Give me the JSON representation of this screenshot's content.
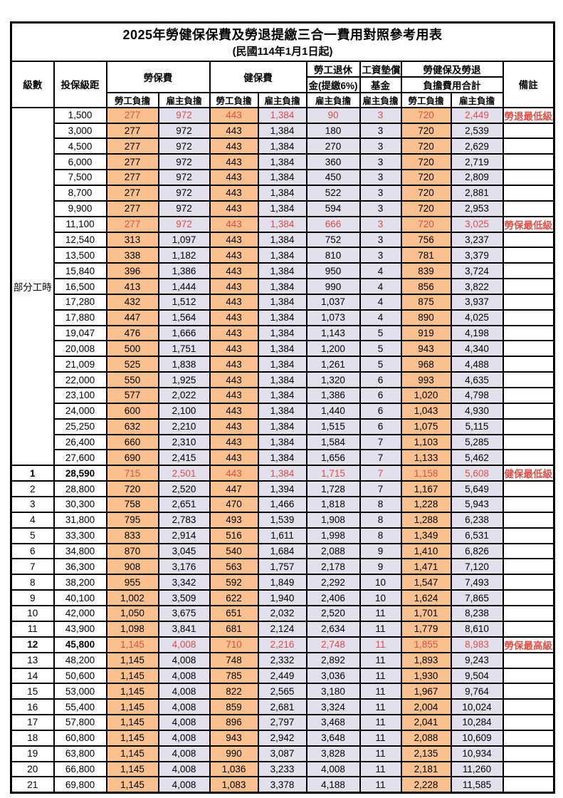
{
  "title": {
    "line1": "2025年勞健保保費及勞退提繳三合一費用對照參考用表",
    "line2": "(民國114年1月1日起)"
  },
  "header": {
    "level": "級數",
    "bracket": "投保級距",
    "labor_insurance": "勞保費",
    "health_insurance": "健保費",
    "pension_line1": "勞工退休",
    "pension_line2": "金(提繳6%)",
    "wage_fund_line1": "工資墊償",
    "wage_fund_line2": "基金",
    "total_line1": "勞健保及勞退",
    "total_line2": "負擔費用合計",
    "remark": "備註",
    "employee": "勞工負擔",
    "employer": "雇主負擔"
  },
  "part_time_label": "部分工時",
  "colors": {
    "employee_bg": "#FAC090",
    "employer_bg": "#E4DFEC",
    "highlight_text": "#E04E48",
    "border": "#000000"
  },
  "rows": [
    {
      "level": "",
      "bracket": "1,500",
      "values": [
        "277",
        "972",
        "443",
        "1,384",
        "90",
        "3",
        "720",
        "2,449"
      ],
      "remark": "勞退最低級距",
      "highlight": true,
      "bold": false
    },
    {
      "level": "",
      "bracket": "3,000",
      "values": [
        "277",
        "972",
        "443",
        "1,384",
        "180",
        "3",
        "720",
        "2,539"
      ],
      "remark": "",
      "highlight": false,
      "bold": false
    },
    {
      "level": "",
      "bracket": "4,500",
      "values": [
        "277",
        "972",
        "443",
        "1,384",
        "270",
        "3",
        "720",
        "2,629"
      ],
      "remark": "",
      "highlight": false,
      "bold": false
    },
    {
      "level": "",
      "bracket": "6,000",
      "values": [
        "277",
        "972",
        "443",
        "1,384",
        "360",
        "3",
        "720",
        "2,719"
      ],
      "remark": "",
      "highlight": false,
      "bold": false
    },
    {
      "level": "",
      "bracket": "7,500",
      "values": [
        "277",
        "972",
        "443",
        "1,384",
        "450",
        "3",
        "720",
        "2,809"
      ],
      "remark": "",
      "highlight": false,
      "bold": false
    },
    {
      "level": "",
      "bracket": "8,700",
      "values": [
        "277",
        "972",
        "443",
        "1,384",
        "522",
        "3",
        "720",
        "2,881"
      ],
      "remark": "",
      "highlight": false,
      "bold": false
    },
    {
      "level": "",
      "bracket": "9,900",
      "values": [
        "277",
        "972",
        "443",
        "1,384",
        "594",
        "3",
        "720",
        "2,953"
      ],
      "remark": "",
      "highlight": false,
      "bold": false
    },
    {
      "level": "",
      "bracket": "11,100",
      "values": [
        "277",
        "972",
        "443",
        "1,384",
        "666",
        "3",
        "720",
        "3,025"
      ],
      "remark": "勞保最低級距",
      "highlight": true,
      "bold": false
    },
    {
      "level": "",
      "bracket": "12,540",
      "values": [
        "313",
        "1,097",
        "443",
        "1,384",
        "752",
        "3",
        "756",
        "3,237"
      ],
      "remark": "",
      "highlight": false,
      "bold": false
    },
    {
      "level": "",
      "bracket": "13,500",
      "values": [
        "338",
        "1,182",
        "443",
        "1,384",
        "810",
        "3",
        "781",
        "3,379"
      ],
      "remark": "",
      "highlight": false,
      "bold": false
    },
    {
      "level": "",
      "bracket": "15,840",
      "values": [
        "396",
        "1,386",
        "443",
        "1,384",
        "950",
        "4",
        "839",
        "3,724"
      ],
      "remark": "",
      "highlight": false,
      "bold": false
    },
    {
      "level": "",
      "bracket": "16,500",
      "values": [
        "413",
        "1,444",
        "443",
        "1,384",
        "990",
        "4",
        "856",
        "3,822"
      ],
      "remark": "",
      "highlight": false,
      "bold": false
    },
    {
      "level": "",
      "bracket": "17,280",
      "values": [
        "432",
        "1,512",
        "443",
        "1,384",
        "1,037",
        "4",
        "875",
        "3,937"
      ],
      "remark": "",
      "highlight": false,
      "bold": false
    },
    {
      "level": "",
      "bracket": "17,880",
      "values": [
        "447",
        "1,564",
        "443",
        "1,384",
        "1,073",
        "4",
        "890",
        "4,025"
      ],
      "remark": "",
      "highlight": false,
      "bold": false
    },
    {
      "level": "",
      "bracket": "19,047",
      "values": [
        "476",
        "1,666",
        "443",
        "1,384",
        "1,143",
        "5",
        "919",
        "4,198"
      ],
      "remark": "",
      "highlight": false,
      "bold": false
    },
    {
      "level": "",
      "bracket": "20,008",
      "values": [
        "500",
        "1,751",
        "443",
        "1,384",
        "1,200",
        "5",
        "943",
        "4,340"
      ],
      "remark": "",
      "highlight": false,
      "bold": false
    },
    {
      "level": "",
      "bracket": "21,009",
      "values": [
        "525",
        "1,838",
        "443",
        "1,384",
        "1,261",
        "5",
        "968",
        "4,488"
      ],
      "remark": "",
      "highlight": false,
      "bold": false
    },
    {
      "level": "",
      "bracket": "22,000",
      "values": [
        "550",
        "1,925",
        "443",
        "1,384",
        "1,320",
        "6",
        "993",
        "4,635"
      ],
      "remark": "",
      "highlight": false,
      "bold": false
    },
    {
      "level": "",
      "bracket": "23,100",
      "values": [
        "577",
        "2,022",
        "443",
        "1,384",
        "1,386",
        "6",
        "1,020",
        "4,798"
      ],
      "remark": "",
      "highlight": false,
      "bold": false
    },
    {
      "level": "",
      "bracket": "24,000",
      "values": [
        "600",
        "2,100",
        "443",
        "1,384",
        "1,440",
        "6",
        "1,043",
        "4,930"
      ],
      "remark": "",
      "highlight": false,
      "bold": false
    },
    {
      "level": "",
      "bracket": "25,250",
      "values": [
        "632",
        "2,210",
        "443",
        "1,384",
        "1,515",
        "6",
        "1,075",
        "5,115"
      ],
      "remark": "",
      "highlight": false,
      "bold": false
    },
    {
      "level": "",
      "bracket": "26,400",
      "values": [
        "660",
        "2,310",
        "443",
        "1,384",
        "1,584",
        "7",
        "1,103",
        "5,285"
      ],
      "remark": "",
      "highlight": false,
      "bold": false
    },
    {
      "level": "",
      "bracket": "27,600",
      "values": [
        "690",
        "2,415",
        "443",
        "1,384",
        "1,656",
        "7",
        "1,133",
        "5,462"
      ],
      "remark": "",
      "highlight": false,
      "bold": false
    },
    {
      "level": "1",
      "bracket": "28,590",
      "values": [
        "715",
        "2,501",
        "443",
        "1,384",
        "1,715",
        "7",
        "1,158",
        "5,608"
      ],
      "remark": "健保最低級距",
      "highlight": true,
      "bold": true
    },
    {
      "level": "2",
      "bracket": "28,800",
      "values": [
        "720",
        "2,520",
        "447",
        "1,394",
        "1,728",
        "7",
        "1,167",
        "5,649"
      ],
      "remark": "",
      "highlight": false,
      "bold": false
    },
    {
      "level": "3",
      "bracket": "30,300",
      "values": [
        "758",
        "2,651",
        "470",
        "1,466",
        "1,818",
        "8",
        "1,228",
        "5,943"
      ],
      "remark": "",
      "highlight": false,
      "bold": false
    },
    {
      "level": "4",
      "bracket": "31,800",
      "values": [
        "795",
        "2,783",
        "493",
        "1,539",
        "1,908",
        "8",
        "1,288",
        "6,238"
      ],
      "remark": "",
      "highlight": false,
      "bold": false
    },
    {
      "level": "5",
      "bracket": "33,300",
      "values": [
        "833",
        "2,914",
        "516",
        "1,611",
        "1,998",
        "8",
        "1,349",
        "6,531"
      ],
      "remark": "",
      "highlight": false,
      "bold": false
    },
    {
      "level": "6",
      "bracket": "34,800",
      "values": [
        "870",
        "3,045",
        "540",
        "1,684",
        "2,088",
        "9",
        "1,410",
        "6,826"
      ],
      "remark": "",
      "highlight": false,
      "bold": false
    },
    {
      "level": "7",
      "bracket": "36,300",
      "values": [
        "908",
        "3,176",
        "563",
        "1,757",
        "2,178",
        "9",
        "1,471",
        "7,120"
      ],
      "remark": "",
      "highlight": false,
      "bold": false
    },
    {
      "level": "8",
      "bracket": "38,200",
      "values": [
        "955",
        "3,342",
        "592",
        "1,849",
        "2,292",
        "10",
        "1,547",
        "7,493"
      ],
      "remark": "",
      "highlight": false,
      "bold": false
    },
    {
      "level": "9",
      "bracket": "40,100",
      "values": [
        "1,002",
        "3,509",
        "622",
        "1,940",
        "2,406",
        "10",
        "1,624",
        "7,865"
      ],
      "remark": "",
      "highlight": false,
      "bold": false
    },
    {
      "level": "10",
      "bracket": "42,000",
      "values": [
        "1,050",
        "3,675",
        "651",
        "2,032",
        "2,520",
        "11",
        "1,701",
        "8,238"
      ],
      "remark": "",
      "highlight": false,
      "bold": false
    },
    {
      "level": "11",
      "bracket": "43,900",
      "values": [
        "1,098",
        "3,841",
        "681",
        "2,124",
        "2,634",
        "11",
        "1,779",
        "8,610"
      ],
      "remark": "",
      "highlight": false,
      "bold": false
    },
    {
      "level": "12",
      "bracket": "45,800",
      "values": [
        "1,145",
        "4,008",
        "710",
        "2,216",
        "2,748",
        "11",
        "1,855",
        "8,983"
      ],
      "remark": "勞保最高級距",
      "highlight": true,
      "bold": true
    },
    {
      "level": "13",
      "bracket": "48,200",
      "values": [
        "1,145",
        "4,008",
        "748",
        "2,332",
        "2,892",
        "11",
        "1,893",
        "9,243"
      ],
      "remark": "",
      "highlight": false,
      "bold": false
    },
    {
      "level": "14",
      "bracket": "50,600",
      "values": [
        "1,145",
        "4,008",
        "785",
        "2,449",
        "3,036",
        "11",
        "1,930",
        "9,504"
      ],
      "remark": "",
      "highlight": false,
      "bold": false
    },
    {
      "level": "15",
      "bracket": "53,000",
      "values": [
        "1,145",
        "4,008",
        "822",
        "2,565",
        "3,180",
        "11",
        "1,967",
        "9,764"
      ],
      "remark": "",
      "highlight": false,
      "bold": false
    },
    {
      "level": "16",
      "bracket": "55,400",
      "values": [
        "1,145",
        "4,008",
        "859",
        "2,681",
        "3,324",
        "11",
        "2,004",
        "10,024"
      ],
      "remark": "",
      "highlight": false,
      "bold": false
    },
    {
      "level": "17",
      "bracket": "57,800",
      "values": [
        "1,145",
        "4,008",
        "896",
        "2,797",
        "3,468",
        "11",
        "2,041",
        "10,284"
      ],
      "remark": "",
      "highlight": false,
      "bold": false
    },
    {
      "level": "18",
      "bracket": "60,800",
      "values": [
        "1,145",
        "4,008",
        "943",
        "2,942",
        "3,648",
        "11",
        "2,088",
        "10,609"
      ],
      "remark": "",
      "highlight": false,
      "bold": false
    },
    {
      "level": "19",
      "bracket": "63,800",
      "values": [
        "1,145",
        "4,008",
        "990",
        "3,087",
        "3,828",
        "11",
        "2,135",
        "10,934"
      ],
      "remark": "",
      "highlight": false,
      "bold": false
    },
    {
      "level": "20",
      "bracket": "66,800",
      "values": [
        "1,145",
        "4,008",
        "1,036",
        "3,233",
        "4,008",
        "11",
        "2,181",
        "11,260"
      ],
      "remark": "",
      "highlight": false,
      "bold": false
    },
    {
      "level": "21",
      "bracket": "69,800",
      "values": [
        "1,145",
        "4,008",
        "1,083",
        "3,378",
        "4,188",
        "11",
        "2,228",
        "11,585"
      ],
      "remark": "",
      "highlight": false,
      "bold": false
    }
  ]
}
